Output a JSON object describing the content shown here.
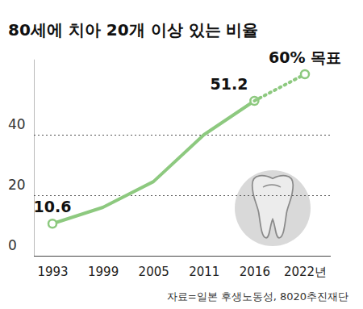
{
  "chart_data": {
    "type": "line",
    "title": "80세에 치아 20개 이상 있는 비율",
    "source": "자료=일본 후생노동성, 8020추진재단",
    "categories": [
      "1993",
      "1999",
      "2005",
      "2011",
      "2016",
      "2022년"
    ],
    "series": [
      {
        "color": "#8dc97f",
        "line_style": "solid",
        "values": [
          10.6,
          16,
          24.5,
          40,
          51.2,
          null
        ],
        "value_labels": [
          "10.6",
          null,
          null,
          null,
          "51.2",
          null
        ]
      },
      {
        "color": "#8dc97f",
        "line_style": "dotted",
        "values": [
          null,
          null,
          null,
          null,
          51.2,
          60
        ],
        "value_labels": [
          null,
          null,
          null,
          null,
          null,
          "60% 목표"
        ]
      }
    ],
    "ylim": [
      0,
      65
    ],
    "yticks": [
      0,
      20,
      40
    ],
    "grid": true,
    "data_labels": true,
    "marker": "circle"
  }
}
